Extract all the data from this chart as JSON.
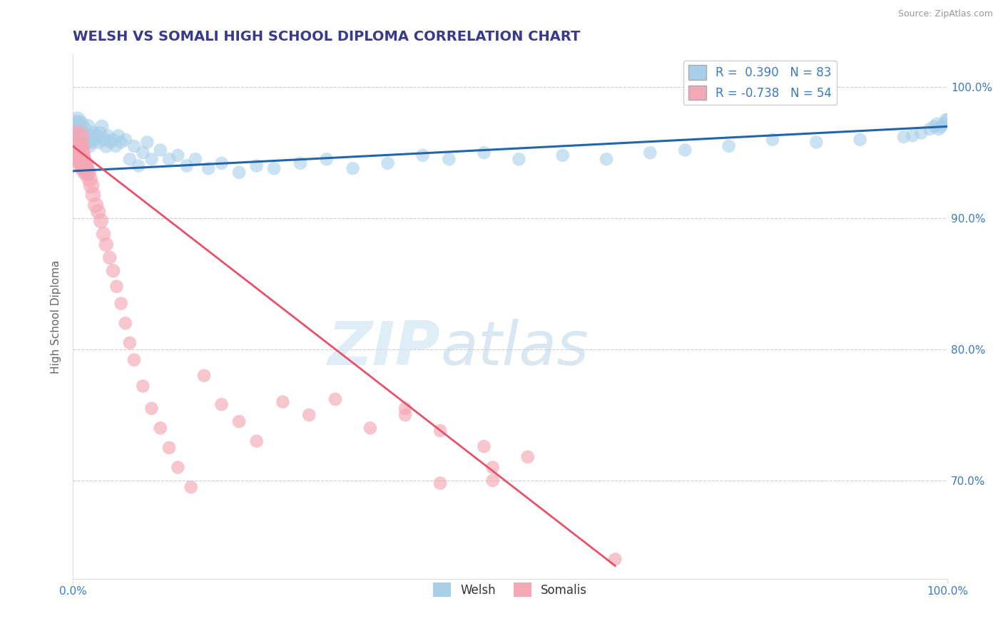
{
  "title": "WELSH VS SOMALI HIGH SCHOOL DIPLOMA CORRELATION CHART",
  "source_text": "Source: ZipAtlas.com",
  "ylabel": "High School Diploma",
  "xlim": [
    0.0,
    1.0
  ],
  "ylim": [
    0.625,
    1.025
  ],
  "yticks": [
    0.7,
    0.8,
    0.9,
    1.0
  ],
  "ytick_labels": [
    "70.0%",
    "80.0%",
    "90.0%",
    "100.0%"
  ],
  "welsh_R": 0.39,
  "welsh_N": 83,
  "somali_R": -0.738,
  "somali_N": 54,
  "welsh_color": "#a8cfe8",
  "somali_color": "#f4a7b5",
  "welsh_line_color": "#2166ac",
  "somali_line_color": "#e8506a",
  "watermark_zip": "ZIP",
  "watermark_atlas": "atlas",
  "title_color": "#3a3a8c",
  "axis_label_color": "#666666",
  "tick_color": "#3a7abf",
  "grid_color": "#cccccc",
  "background_color": "#ffffff",
  "welsh_line_x0": 0.0,
  "welsh_line_x1": 1.0,
  "welsh_line_y0": 0.936,
  "welsh_line_y1": 0.97,
  "somali_line_x0": 0.0,
  "somali_line_x1": 0.62,
  "somali_line_y0": 0.955,
  "somali_line_y1": 0.635,
  "welsh_x": [
    0.002,
    0.003,
    0.004,
    0.004,
    0.005,
    0.005,
    0.006,
    0.006,
    0.007,
    0.007,
    0.008,
    0.009,
    0.01,
    0.01,
    0.011,
    0.012,
    0.013,
    0.014,
    0.015,
    0.016,
    0.017,
    0.018,
    0.019,
    0.02,
    0.022,
    0.024,
    0.025,
    0.027,
    0.029,
    0.031,
    0.033,
    0.036,
    0.038,
    0.04,
    0.043,
    0.046,
    0.049,
    0.052,
    0.055,
    0.06,
    0.065,
    0.07,
    0.075,
    0.08,
    0.085,
    0.09,
    0.1,
    0.11,
    0.12,
    0.13,
    0.14,
    0.155,
    0.17,
    0.19,
    0.21,
    0.23,
    0.26,
    0.29,
    0.32,
    0.36,
    0.4,
    0.43,
    0.47,
    0.51,
    0.56,
    0.61,
    0.66,
    0.7,
    0.75,
    0.8,
    0.85,
    0.9,
    0.95,
    0.96,
    0.97,
    0.98,
    0.985,
    0.988,
    0.99,
    0.993,
    0.996,
    0.998,
    1.0
  ],
  "welsh_y": [
    0.97,
    0.965,
    0.968,
    0.972,
    0.96,
    0.975,
    0.958,
    0.963,
    0.97,
    0.965,
    0.968,
    0.972,
    0.96,
    0.955,
    0.958,
    0.965,
    0.968,
    0.96,
    0.963,
    0.958,
    0.97,
    0.96,
    0.955,
    0.962,
    0.958,
    0.965,
    0.96,
    0.963,
    0.958,
    0.965,
    0.97,
    0.96,
    0.955,
    0.963,
    0.958,
    0.96,
    0.955,
    0.963,
    0.958,
    0.96,
    0.945,
    0.955,
    0.94,
    0.95,
    0.958,
    0.945,
    0.952,
    0.945,
    0.948,
    0.94,
    0.945,
    0.938,
    0.942,
    0.935,
    0.94,
    0.938,
    0.942,
    0.945,
    0.938,
    0.942,
    0.948,
    0.945,
    0.95,
    0.945,
    0.948,
    0.945,
    0.95,
    0.952,
    0.955,
    0.96,
    0.958,
    0.96,
    0.962,
    0.963,
    0.965,
    0.968,
    0.97,
    0.972,
    0.968,
    0.97,
    0.972,
    0.975,
    0.975
  ],
  "welsh_sizes": [
    55,
    45,
    42,
    38,
    35,
    32,
    30,
    28,
    30,
    28,
    28,
    30,
    28,
    30,
    28,
    26,
    26,
    24,
    26,
    24,
    26,
    24,
    22,
    24,
    22,
    24,
    22,
    22,
    22,
    22,
    22,
    22,
    22,
    20,
    20,
    20,
    20,
    20,
    20,
    20,
    20,
    20,
    20,
    20,
    20,
    20,
    20,
    20,
    20,
    20,
    20,
    20,
    20,
    20,
    20,
    20,
    20,
    20,
    20,
    20,
    20,
    20,
    20,
    20,
    20,
    20,
    20,
    20,
    20,
    20,
    20,
    20,
    20,
    20,
    20,
    20,
    20,
    20,
    20,
    20,
    20,
    20,
    20
  ],
  "somali_x": [
    0.003,
    0.004,
    0.005,
    0.005,
    0.006,
    0.007,
    0.007,
    0.008,
    0.009,
    0.01,
    0.011,
    0.012,
    0.013,
    0.014,
    0.015,
    0.017,
    0.019,
    0.021,
    0.023,
    0.026,
    0.029,
    0.032,
    0.035,
    0.038,
    0.042,
    0.046,
    0.05,
    0.055,
    0.06,
    0.065,
    0.07,
    0.08,
    0.09,
    0.1,
    0.11,
    0.12,
    0.135,
    0.15,
    0.17,
    0.19,
    0.21,
    0.24,
    0.27,
    0.3,
    0.34,
    0.38,
    0.42,
    0.47,
    0.52,
    0.48,
    0.42,
    0.38,
    0.48,
    0.62
  ],
  "somali_y": [
    0.96,
    0.955,
    0.948,
    0.962,
    0.952,
    0.948,
    0.955,
    0.945,
    0.95,
    0.945,
    0.94,
    0.942,
    0.938,
    0.94,
    0.935,
    0.935,
    0.93,
    0.925,
    0.918,
    0.91,
    0.905,
    0.898,
    0.888,
    0.88,
    0.87,
    0.86,
    0.848,
    0.835,
    0.82,
    0.805,
    0.792,
    0.772,
    0.755,
    0.74,
    0.725,
    0.71,
    0.695,
    0.78,
    0.758,
    0.745,
    0.73,
    0.76,
    0.75,
    0.762,
    0.74,
    0.755,
    0.738,
    0.726,
    0.718,
    0.71,
    0.698,
    0.75,
    0.7,
    0.64
  ],
  "somali_sizes": [
    70,
    60,
    55,
    65,
    50,
    55,
    48,
    45,
    42,
    45,
    40,
    38,
    38,
    35,
    35,
    32,
    30,
    30,
    28,
    28,
    26,
    26,
    24,
    24,
    22,
    22,
    20,
    20,
    20,
    20,
    20,
    20,
    20,
    20,
    20,
    20,
    20,
    20,
    20,
    20,
    20,
    20,
    20,
    20,
    20,
    20,
    20,
    20,
    20,
    20,
    20,
    20,
    20,
    20
  ]
}
